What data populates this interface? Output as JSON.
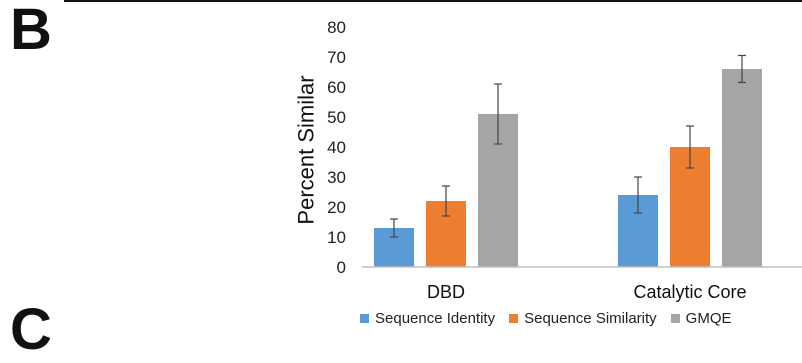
{
  "panel_letters": {
    "upper": "B",
    "lower": "C"
  },
  "chart_data": {
    "type": "bar",
    "ylabel": "Percent Similar",
    "xlabel": "",
    "ylim": [
      0,
      80
    ],
    "yticks": [
      0,
      10,
      20,
      30,
      40,
      50,
      60,
      70,
      80
    ],
    "categories": [
      "DBD",
      "Catalytic Core"
    ],
    "grid": false,
    "legend_position": "bottom",
    "series": [
      {
        "name": "Sequence Identity",
        "color": "#5b9bd5",
        "values": [
          13,
          24
        ],
        "errors": [
          3,
          6
        ]
      },
      {
        "name": "Sequence Similarity",
        "color": "#ed7d31",
        "values": [
          22,
          40
        ],
        "errors": [
          5,
          7
        ]
      },
      {
        "name": "GMQE",
        "color": "#a5a5a5",
        "values": [
          51,
          66
        ],
        "errors": [
          10,
          4.5
        ]
      }
    ]
  }
}
